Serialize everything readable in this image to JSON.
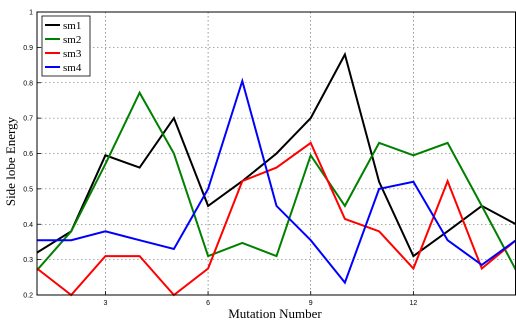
{
  "chart_data": {
    "type": "line",
    "title": "",
    "xlabel": "Mutation Number",
    "ylabel": "Side lobe Energy",
    "xlim": [
      1,
      15
    ],
    "ylim": [
      0.2,
      1
    ],
    "xticks": [
      3,
      6,
      9,
      12
    ],
    "yticks": [
      0.2,
      0.3,
      0.4,
      0.5,
      0.6,
      0.7,
      0.8,
      0.9,
      1
    ],
    "ytick_labels": [
      "0.2",
      "0.3",
      "0.4",
      "0.5",
      "0.6",
      "0.7",
      "0.8",
      "0.9",
      "1"
    ],
    "grid": true,
    "legend_position": "top-left",
    "x": [
      1,
      2,
      3,
      4,
      5,
      6,
      7,
      8,
      9,
      10,
      11,
      12,
      13,
      14,
      15
    ],
    "series": [
      {
        "name": "sm1",
        "color": "#000000",
        "values": [
          0.32,
          0.38,
          0.595,
          0.56,
          0.7,
          0.452,
          0.522,
          0.6,
          0.7,
          0.88,
          0.52,
          0.31,
          0.38,
          0.452,
          0.4
        ]
      },
      {
        "name": "sm2",
        "color": "#008000",
        "values": [
          0.27,
          0.38,
          0.57,
          0.772,
          0.6,
          0.31,
          0.347,
          0.31,
          0.595,
          0.452,
          0.63,
          0.595,
          0.63,
          0.452,
          0.27
        ]
      },
      {
        "name": "sm3",
        "color": "#ff0000",
        "values": [
          0.275,
          0.2,
          0.31,
          0.31,
          0.2,
          0.275,
          0.522,
          0.56,
          0.63,
          0.415,
          0.38,
          0.275,
          0.522,
          0.275,
          0.355
        ]
      },
      {
        "name": "sm4",
        "color": "#0000ff",
        "values": [
          0.355,
          0.355,
          0.38,
          0.355,
          0.33,
          0.5,
          0.805,
          0.452,
          0.355,
          0.235,
          0.5,
          0.52,
          0.355,
          0.285,
          0.355
        ]
      }
    ]
  }
}
